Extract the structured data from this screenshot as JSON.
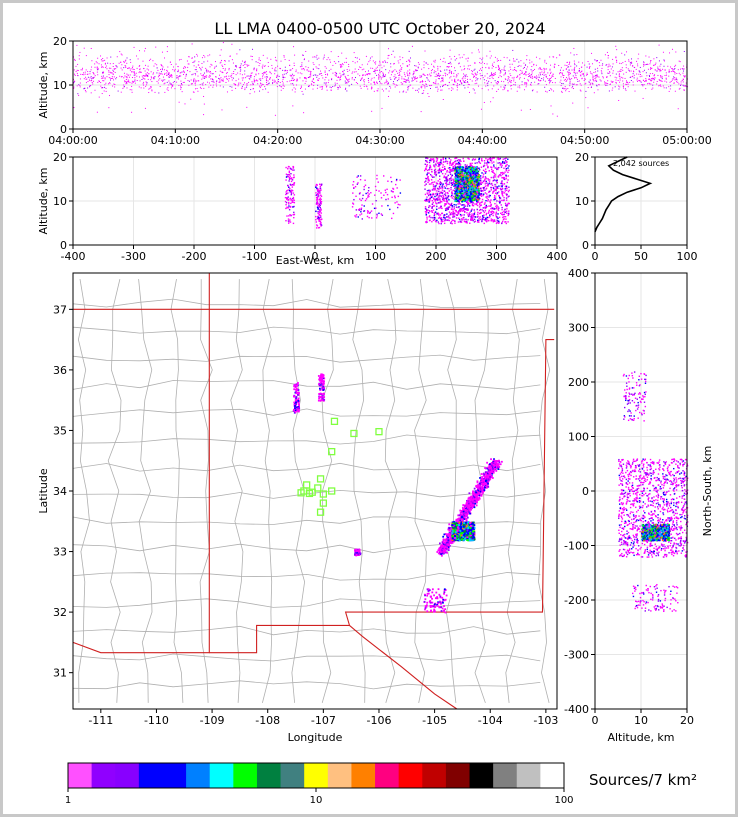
{
  "title": "LL LMA 0400-0500 UTC October 20, 2024",
  "colors": {
    "frame": "#c8c8c8",
    "state_border": "#d02020",
    "county": "#b0b0b0",
    "station": "#80ff40",
    "grid": "#e6e6e6"
  },
  "colorbar": {
    "label": "Sources/7 km²",
    "ticks": [
      "1",
      "10",
      "100"
    ],
    "colors": [
      "#ff50ff",
      "#9000ff",
      "#8800ff",
      "#0000ff",
      "#0000ff",
      "#0080ff",
      "#00ffff",
      "#00ff00",
      "#008040",
      "#408080",
      "#ffff00",
      "#ffc080",
      "#ff8000",
      "#ff0080",
      "#ff0000",
      "#c00000",
      "#800000",
      "#000000",
      "#808080",
      "#c0c0c0",
      "#ffffff"
    ]
  },
  "chart_data": [
    {
      "id": "time_height",
      "type": "scatter",
      "title": "",
      "xlabel": "",
      "ylabel": "Altitude, km",
      "x_ticks": [
        "04:00:00",
        "04:10:00",
        "04:20:00",
        "04:30:00",
        "04:40:00",
        "04:50:00",
        "05:00:00"
      ],
      "xlim": [
        "04:00:00",
        "05:00:00"
      ],
      "ylim": [
        0,
        20
      ],
      "y_ticks": [
        "0",
        "10",
        "20"
      ],
      "description_of_density": "dense sources 8-20 km throughout the hour"
    },
    {
      "id": "ew_height",
      "type": "scatter",
      "xlabel": "East-West, km",
      "ylabel": "Altitude, km",
      "xlim": [
        -400,
        400
      ],
      "ylim": [
        0,
        20
      ],
      "x_ticks": [
        "-400",
        "-300",
        "-200",
        "-100",
        "0",
        "100",
        "200",
        "300",
        "400"
      ],
      "y_ticks": [
        "0",
        "10",
        "20"
      ],
      "clusters": [
        {
          "x": [
            -50,
            -35
          ],
          "y": [
            5,
            18
          ]
        },
        {
          "x": [
            0,
            10
          ],
          "y": [
            4,
            14
          ]
        },
        {
          "x": [
            60,
            140
          ],
          "y": [
            6,
            16
          ]
        },
        {
          "x": [
            180,
            320
          ],
          "y": [
            5,
            20
          ],
          "dense_core": {
            "x": [
              230,
              270
            ],
            "y": [
              10,
              18
            ]
          }
        }
      ]
    },
    {
      "id": "height_histogram",
      "type": "line",
      "annotation": "2,042 sources",
      "xlim": [
        0,
        100
      ],
      "ylim": [
        0,
        20
      ],
      "x_ticks": [
        "0",
        "50",
        "100"
      ],
      "y_ticks": [
        "0",
        "10",
        "20"
      ],
      "profile": [
        [
          0,
          3
        ],
        [
          2,
          4
        ],
        [
          5,
          5
        ],
        [
          8,
          6
        ],
        [
          10,
          7
        ],
        [
          12,
          8
        ],
        [
          15,
          9
        ],
        [
          18,
          10
        ],
        [
          25,
          11
        ],
        [
          35,
          12
        ],
        [
          50,
          13
        ],
        [
          60,
          14
        ],
        [
          45,
          15
        ],
        [
          30,
          16
        ],
        [
          20,
          17
        ],
        [
          15,
          18
        ],
        [
          25,
          19
        ],
        [
          35,
          20
        ]
      ]
    },
    {
      "id": "plan_view",
      "type": "scatter",
      "xlabel": "Longitude",
      "ylabel": "Latitude",
      "xlim": [
        -111.5,
        -102.8
      ],
      "ylim": [
        30.4,
        37.6
      ],
      "x_ticks": [
        "-111",
        "-110",
        "-109",
        "-108",
        "-107",
        "-106",
        "-105",
        "-104",
        "-103"
      ],
      "y_ticks": [
        "31",
        "32",
        "33",
        "34",
        "35",
        "36",
        "37"
      ],
      "stations": [
        [
          -106.8,
          35.15
        ],
        [
          -106.45,
          34.95
        ],
        [
          -106.0,
          34.98
        ],
        [
          -106.85,
          34.65
        ],
        [
          -107.35,
          34.0
        ],
        [
          -107.2,
          33.98
        ],
        [
          -107.05,
          34.2
        ],
        [
          -107.3,
          34.1
        ],
        [
          -107.1,
          34.05
        ],
        [
          -107.0,
          33.95
        ],
        [
          -106.85,
          34.0
        ],
        [
          -107.0,
          33.8
        ],
        [
          -107.05,
          33.65
        ],
        [
          -107.25,
          33.96
        ],
        [
          -107.4,
          33.97
        ]
      ],
      "clusters": [
        {
          "lon": [
            -107.55,
            -107.45
          ],
          "lat": [
            35.3,
            35.8
          ]
        },
        {
          "lon": [
            -107.1,
            -107.0
          ],
          "lat": [
            35.5,
            35.95
          ]
        },
        {
          "lon": [
            -104.9,
            -103.9
          ],
          "lat": [
            33.0,
            34.5
          ],
          "dense_core": {
            "lon": [
              -104.7,
              -104.3
            ],
            "lat": [
              33.2,
              33.5
            ]
          }
        },
        {
          "lon": [
            -106.45,
            -106.35
          ],
          "lat": [
            32.95,
            33.05
          ]
        },
        {
          "lon": [
            -105.2,
            -104.8
          ],
          "lat": [
            32.0,
            32.4
          ]
        }
      ]
    },
    {
      "id": "ns_height",
      "type": "scatter",
      "xlabel": "Altitude, km",
      "ylabel": "North-South, km",
      "xlim": [
        0,
        20
      ],
      "ylim": [
        -400,
        400
      ],
      "x_ticks": [
        "0",
        "10",
        "20"
      ],
      "y_ticks": [
        "-400",
        "-300",
        "-200",
        "-100",
        "0",
        "100",
        "200",
        "300",
        "400"
      ],
      "clusters": [
        {
          "x": [
            6,
            11
          ],
          "y": [
            130,
            220
          ]
        },
        {
          "x": [
            5,
            20
          ],
          "y": [
            -120,
            60
          ],
          "dense_core": {
            "x": [
              10,
              16
            ],
            "y": [
              -90,
              -60
            ]
          }
        },
        {
          "x": [
            8,
            18
          ],
          "y": [
            -220,
            -170
          ]
        }
      ]
    }
  ]
}
